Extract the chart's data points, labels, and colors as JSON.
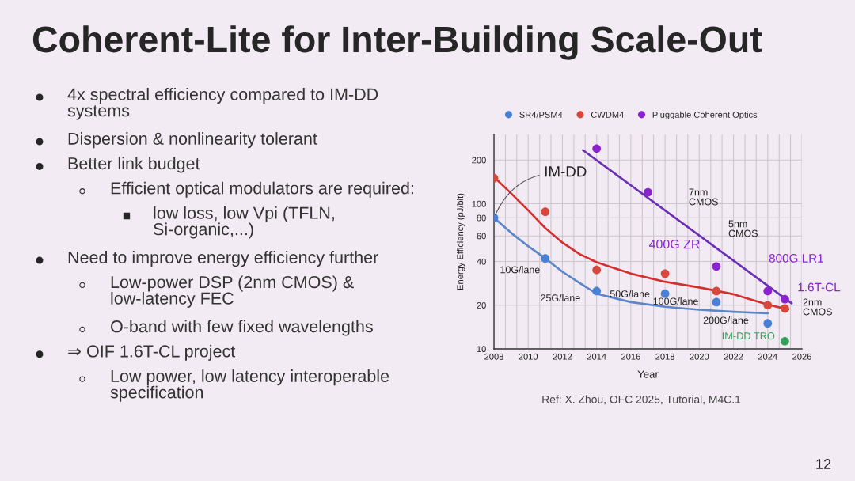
{
  "chart_data": [
    {
      "type": "other",
      "title": "Coherent-Lite for Inter-Building Scale-Out",
      "annotations": [
        "4x spectral efficiency compared to IM-DD\nsystems",
        "Dispersion & nonlinearity tolerant",
        "Better link budget",
        "Efficient optical modulators are required:",
        "low loss, low Vpi (TFLN,\nSi-organic,...)",
        "Need to improve energy efficiency further",
        "Low-power DSP (2nm CMOS) &\nlow-latency FEC",
        "O-band with few fixed wavelengths",
        "⇒ OIF 1.6T-CL project",
        "Low power, low latency interoperable\nspecification",
        "12"
      ]
    },
    {
      "type": "scatter",
      "xlabel": "Year",
      "ylabel": "Energy Efficiency (pJ/bit)",
      "log": "y",
      "xlim": [
        2008,
        2026
      ],
      "ylim": [
        10,
        300
      ],
      "xticks": [
        2008,
        {
          "value": 2008.67,
          "label": null
        },
        {
          "value": 2009.33,
          "label": null
        },
        2010,
        {
          "value": 2010.67,
          "label": null
        },
        {
          "value": 2011.33,
          "label": null
        },
        2012,
        {
          "value": 2012.67,
          "label": null
        },
        {
          "value": 2013.33,
          "label": null
        },
        2014,
        {
          "value": 2014.67,
          "label": null
        },
        {
          "value": 2015.33,
          "label": null
        },
        2016,
        {
          "value": 2016.67,
          "label": null
        },
        {
          "value": 2017.33,
          "label": null
        },
        2018,
        {
          "value": 2018.67,
          "label": null
        },
        {
          "value": 2019.33,
          "label": null
        },
        2020,
        {
          "value": 2020.67,
          "label": null
        },
        {
          "value": 2021.33,
          "label": null
        },
        2022,
        {
          "value": 2022.67,
          "label": null
        },
        {
          "value": 2023.33,
          "label": null
        },
        2024,
        {
          "value": 2024.67,
          "label": null
        },
        {
          "value": 2025.33,
          "label": null
        },
        2026
      ],
      "yticks": [
        10,
        20,
        40,
        60,
        80,
        100,
        200
      ],
      "grid": true,
      "legend": "top",
      "marker": "circle",
      "line_style": "solid",
      "series": [
        {
          "name": "SR4/PSM4",
          "color": "#4a7fd6",
          "x": [
            2008,
            2011,
            2014,
            2018,
            2021,
            2024
          ],
          "values": [
            80,
            42,
            25,
            24,
            21,
            15
          ]
        },
        {
          "name": "CWDM4",
          "color": "#d6473c",
          "x": [
            2008,
            2011,
            2014,
            2018,
            2021,
            2024,
            2025
          ],
          "values": [
            150,
            88,
            35,
            33,
            25,
            20,
            19
          ]
        },
        {
          "name": "Pluggable Coherent Optics",
          "color": "#8a22cf",
          "x": [
            2014,
            2017,
            2021,
            2024,
            2025
          ],
          "values": [
            240,
            120,
            37,
            25,
            22
          ]
        },
        {
          "name": "IM-DD TRO",
          "color": "#34a05a",
          "x": [
            2025
          ],
          "values": [
            11.3
          ]
        },
        {
          "type": "line",
          "marker": "none",
          "color": "#5b86c8",
          "x": [
            2008,
            2009,
            2010,
            2011,
            2012,
            2013,
            2014,
            2016,
            2018,
            2020,
            2022,
            2024
          ],
          "values": [
            80,
            63,
            51,
            42,
            34,
            28.5,
            24,
            21,
            19.5,
            18.6,
            18,
            17.6
          ]
        },
        {
          "type": "line",
          "marker": "none",
          "color": "#d42f2f",
          "x": [
            2008,
            2009,
            2010,
            2011,
            2012,
            2013,
            2014,
            2016,
            2018,
            2020,
            2022,
            2024,
            2025.2
          ],
          "values": [
            153,
            118,
            90,
            68,
            54,
            45,
            39.5,
            33,
            29,
            26.5,
            23.8,
            20.2,
            18.7
          ]
        },
        {
          "type": "line",
          "marker": "none",
          "color": "#6b2fb5",
          "x": [
            2013.2,
            2025.4
          ],
          "values": [
            234,
            20.6
          ]
        }
      ],
      "annotations": [
        {
          "text": "IM-DD",
          "x": 2008,
          "y": 80
        },
        "7nm\nCMOS",
        "5nm\nCMOS",
        "400G ZR",
        {
          "text": "10G/lane",
          "x": 2011,
          "y": 42
        },
        {
          "text": "800G LR1",
          "x": 2024,
          "y": 25
        },
        {
          "text": "1.6T-CL",
          "x": 2025,
          "y": 22
        },
        {
          "text": "25G/lane",
          "x": 2014,
          "y": 25
        },
        {
          "text": "50G/lane",
          "x": 2018,
          "y": 24
        },
        {
          "text": "100G/lane",
          "x": 2021,
          "y": 21
        },
        "2nm\nCMOS",
        {
          "text": "200G/lane",
          "x": 2024,
          "y": 15
        },
        "Ref: X. Zhou, OFC 2025, Tutorial, M4C.1"
      ]
    }
  ]
}
